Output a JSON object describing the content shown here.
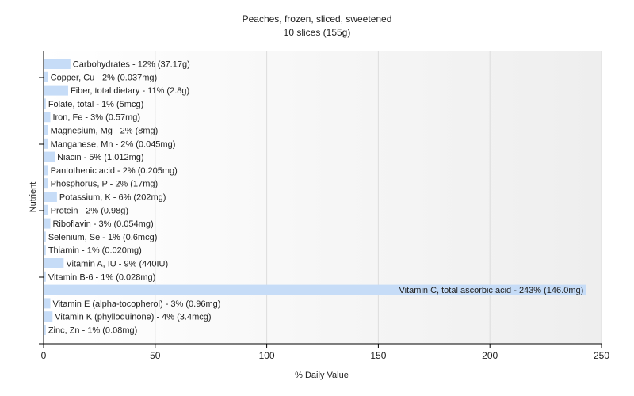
{
  "chart_data": {
    "type": "bar",
    "orientation": "horizontal",
    "title": "Peaches, frozen, sliced, sweetened",
    "subtitle": "10 slices (155g)",
    "xlabel": "% Daily Value",
    "ylabel": "Nutrient",
    "xlim": [
      0,
      250
    ],
    "xticks": [
      0,
      50,
      100,
      150,
      200,
      250
    ],
    "grid": true,
    "legend": "none",
    "bar_color": "#c6dcf7",
    "categories": [
      "Carbohydrates",
      "Copper, Cu",
      "Fiber, total dietary",
      "Folate, total",
      "Iron, Fe",
      "Magnesium, Mg",
      "Manganese, Mn",
      "Niacin",
      "Pantothenic acid",
      "Phosphorus, P",
      "Potassium, K",
      "Protein",
      "Riboflavin",
      "Selenium, Se",
      "Thiamin",
      "Vitamin A, IU",
      "Vitamin B-6",
      "Vitamin C, total ascorbic acid",
      "Vitamin E (alpha-tocopherol)",
      "Vitamin K (phylloquinone)",
      "Zinc, Zn"
    ],
    "values": [
      12,
      2,
      11,
      1,
      3,
      2,
      2,
      5,
      2,
      2,
      6,
      2,
      3,
      1,
      1,
      9,
      1,
      243,
      3,
      4,
      1
    ],
    "labels": [
      "Carbohydrates - 12% (37.17g)",
      "Copper, Cu - 2% (0.037mg)",
      "Fiber, total dietary - 11% (2.8g)",
      "Folate, total - 1% (5mcg)",
      "Iron, Fe - 3% (0.57mg)",
      "Magnesium, Mg - 2% (8mg)",
      "Manganese, Mn - 2% (0.045mg)",
      "Niacin - 5% (1.012mg)",
      "Pantothenic acid - 2% (0.205mg)",
      "Phosphorus, P - 2% (17mg)",
      "Potassium, K - 6% (202mg)",
      "Protein - 2% (0.98g)",
      "Riboflavin - 3% (0.054mg)",
      "Selenium, Se - 1% (0.6mcg)",
      "Thiamin - 1% (0.020mg)",
      "Vitamin A, IU - 9% (440IU)",
      "Vitamin B-6 - 1% (0.028mg)",
      "Vitamin C, total ascorbic acid - 243% (146.0mg)",
      "Vitamin E (alpha-tocopherol) - 3% (0.96mg)",
      "Vitamin K (phylloquinone) - 4% (3.4mcg)",
      "Zinc, Zn - 1% (0.08mg)"
    ]
  }
}
